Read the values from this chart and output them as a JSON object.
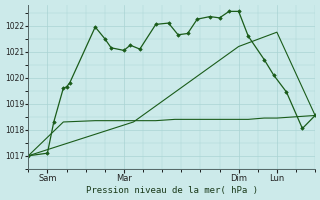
{
  "background_color": "#cceaea",
  "grid_color": "#aad4d4",
  "line_color": "#1a5c1a",
  "xlabel": "Pression niveau de la mer( hPa )",
  "ylim": [
    1016.5,
    1022.8
  ],
  "yticks": [
    1017,
    1018,
    1019,
    1020,
    1021,
    1022
  ],
  "xlim": [
    -12,
    168
  ],
  "xtick_positions": [
    0,
    48,
    120,
    144
  ],
  "xtick_labels": [
    "Sam",
    "Mar",
    "Dim",
    "Lun"
  ],
  "line1_x": [
    -12,
    0,
    4,
    10,
    12,
    14,
    30,
    36,
    40,
    48,
    52,
    58,
    68,
    76,
    82,
    88,
    94,
    102,
    108,
    114,
    120,
    126,
    136,
    142,
    150,
    160,
    168
  ],
  "line1_y": [
    1017.0,
    1017.1,
    1018.3,
    1019.6,
    1019.65,
    1019.8,
    1021.95,
    1021.5,
    1021.15,
    1021.05,
    1021.25,
    1021.1,
    1022.05,
    1022.1,
    1021.65,
    1021.7,
    1022.25,
    1022.35,
    1022.3,
    1022.55,
    1022.55,
    1021.6,
    1020.7,
    1020.1,
    1019.45,
    1018.05,
    1018.55
  ],
  "line2_x": [
    -12,
    54,
    120,
    144,
    168
  ],
  "line2_y": [
    1017.0,
    1018.3,
    1021.2,
    1021.75,
    1018.55
  ],
  "line3_x": [
    -12,
    10,
    30,
    40,
    48,
    58,
    68,
    80,
    92,
    102,
    114,
    126,
    136,
    144,
    168
  ],
  "line3_y": [
    1017.0,
    1018.3,
    1018.35,
    1018.35,
    1018.35,
    1018.35,
    1018.35,
    1018.4,
    1018.4,
    1018.4,
    1018.4,
    1018.4,
    1018.45,
    1018.45,
    1018.55
  ]
}
